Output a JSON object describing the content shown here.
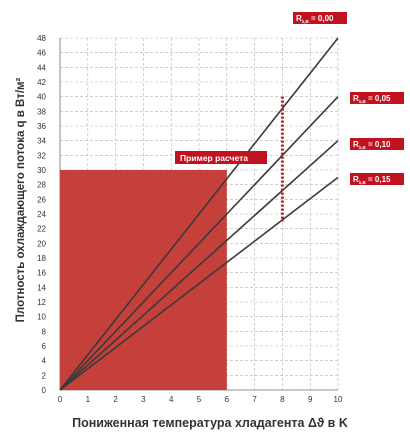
{
  "chart_data": {
    "type": "line",
    "xlabel": "Пониженная температура хладагента Δϑ в K",
    "ylabel": "Плотность охлаждающего потока q в Вт/м²",
    "xlim": [
      0,
      10
    ],
    "ylim": [
      0,
      48
    ],
    "x_ticks": [
      0,
      1,
      2,
      3,
      4,
      5,
      6,
      7,
      8,
      9,
      10
    ],
    "y_ticks": [
      0,
      2,
      4,
      6,
      8,
      10,
      12,
      14,
      16,
      18,
      20,
      22,
      24,
      26,
      28,
      30,
      32,
      34,
      36,
      38,
      40,
      42,
      44,
      46,
      48
    ],
    "grid": true,
    "series": [
      {
        "name": "R λ,B = 0,00",
        "sub": "λ,B",
        "prefix": "R",
        "value_text": "= 0,00",
        "x": [
          0,
          10
        ],
        "y": [
          0,
          48
        ]
      },
      {
        "name": "R λ,B = 0,05",
        "sub": "λ,B",
        "prefix": "R",
        "value_text": "= 0,05",
        "x": [
          0,
          10
        ],
        "y": [
          0,
          40
        ]
      },
      {
        "name": "R λ,B = 0,10",
        "sub": "λ,B",
        "prefix": "R",
        "value_text": "= 0,10",
        "x": [
          0,
          10
        ],
        "y": [
          0,
          34
        ]
      },
      {
        "name": "R λ,B = 0,15",
        "sub": "λ,B",
        "prefix": "R",
        "value_text": "= 0,15",
        "x": [
          0,
          10
        ],
        "y": [
          0,
          29
        ]
      }
    ],
    "example_region": {
      "x": [
        0,
        6
      ],
      "y": [
        0,
        30
      ],
      "color": "#c0392b"
    },
    "example_marker": {
      "x": 8,
      "y_range": [
        23,
        40
      ],
      "color": "#c0121f"
    },
    "annotation": "Пример расчета",
    "colors": {
      "line": "#3a3a3a",
      "label_bg": "#c0121f",
      "region": "#c5403a",
      "grid": "#b5b5b5"
    }
  }
}
